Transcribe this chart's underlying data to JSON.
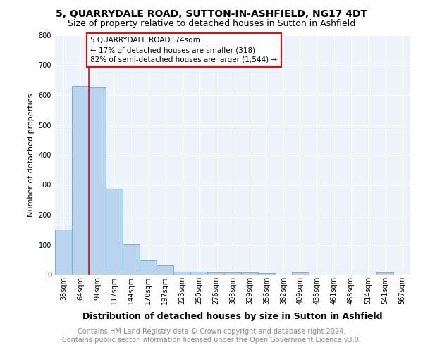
{
  "title": "5, QUARRYDALE ROAD, SUTTON-IN-ASHFIELD, NG17 4DT",
  "subtitle": "Size of property relative to detached houses in Sutton in Ashfield",
  "xlabel": "Distribution of detached houses by size in Sutton in Ashfield",
  "ylabel": "Number of detached properties",
  "categories": [
    "38sqm",
    "64sqm",
    "91sqm",
    "117sqm",
    "144sqm",
    "170sqm",
    "197sqm",
    "223sqm",
    "250sqm",
    "276sqm",
    "303sqm",
    "329sqm",
    "356sqm",
    "382sqm",
    "409sqm",
    "435sqm",
    "461sqm",
    "488sqm",
    "514sqm",
    "541sqm",
    "567sqm"
  ],
  "values": [
    150,
    630,
    625,
    288,
    102,
    46,
    31,
    10,
    10,
    8,
    8,
    7,
    5,
    0,
    7,
    0,
    0,
    0,
    0,
    8,
    0
  ],
  "bar_color": "#bad4ee",
  "bar_edge_color": "#7aadd4",
  "annotation_box_text": [
    "5 QUARRYDALE ROAD: 74sqm",
    "← 17% of detached houses are smaller (318)",
    "82% of semi-detached houses are larger (1,544) →"
  ],
  "annotation_box_color": "white",
  "annotation_box_edge_color": "red",
  "vline_color": "red",
  "vline_x": 1.5,
  "ylim": [
    0,
    800
  ],
  "yticks": [
    0,
    100,
    200,
    300,
    400,
    500,
    600,
    700,
    800
  ],
  "footer_line1": "Contains HM Land Registry data © Crown copyright and database right 2024.",
  "footer_line2": "Contains public sector information licensed under the Open Government Licence v3.0.",
  "background_color": "#edf2fb",
  "grid_color": "white",
  "title_fontsize": 10,
  "subtitle_fontsize": 9,
  "ylabel_fontsize": 8,
  "xlabel_fontsize": 9,
  "tick_fontsize": 7,
  "footer_fontsize": 7,
  "annot_fontsize": 7.5
}
